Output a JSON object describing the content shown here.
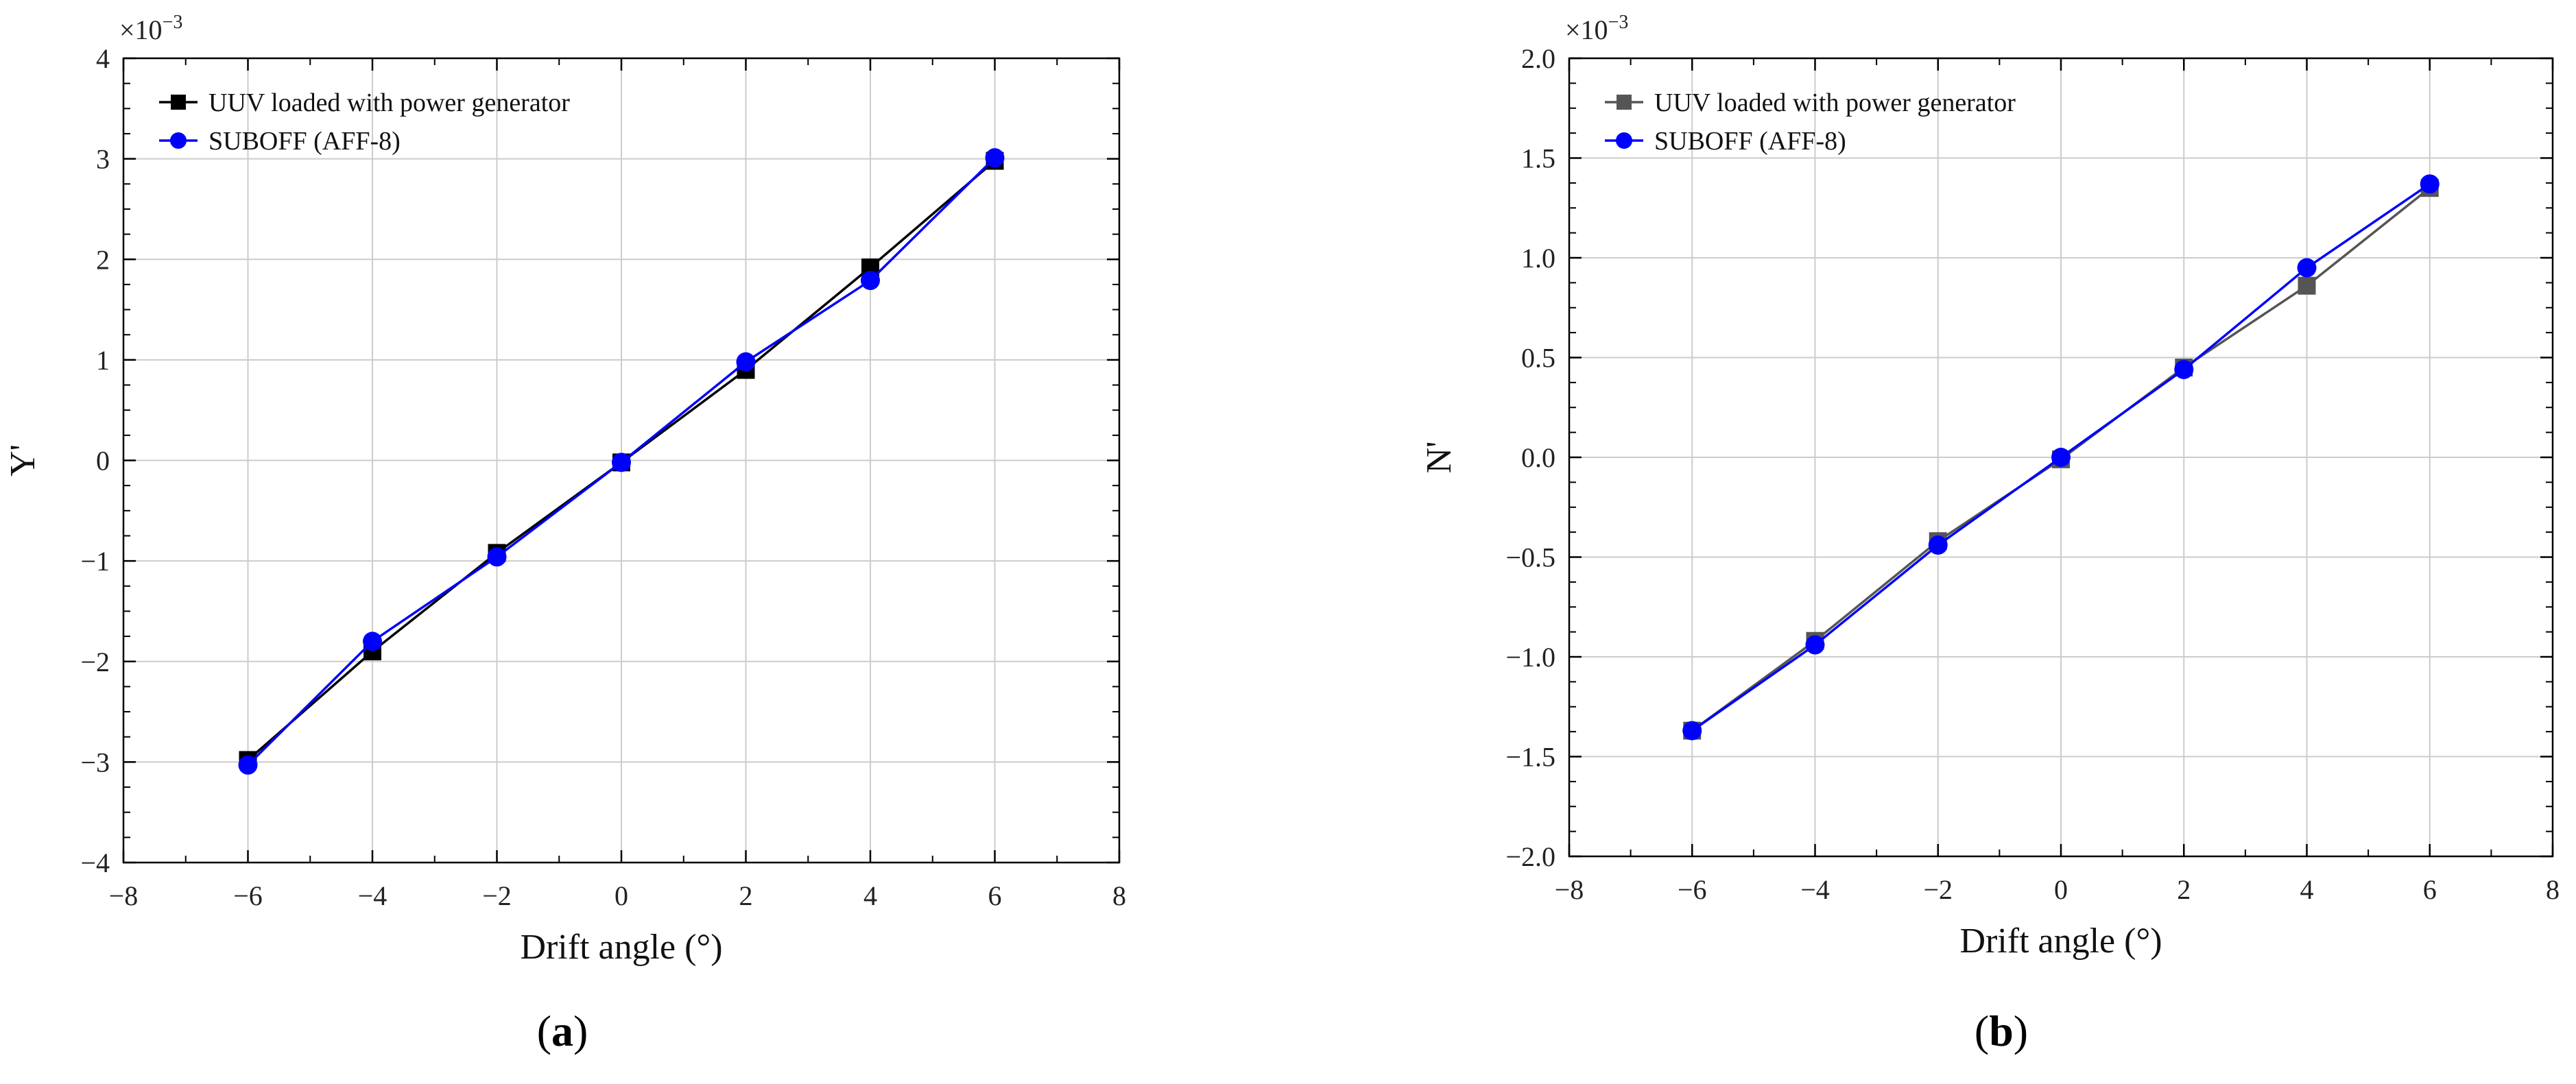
{
  "chart_data": [
    {
      "type": "line",
      "panel_label_prefix": "(",
      "panel_label": "a",
      "panel_label_suffix": ")",
      "xlabel": "Drift angle (°)",
      "ylabel": "Y'",
      "y_scale_prefix": "×10",
      "y_scale_exponent": "−3",
      "xlim": [
        -8,
        8
      ],
      "ylim": [
        -4,
        4
      ],
      "x_ticks": [
        -8,
        -6,
        -4,
        -2,
        0,
        2,
        4,
        6,
        8
      ],
      "x_tick_labels": [
        "−8",
        "−6",
        "−4",
        "−2",
        "0",
        "2",
        "4",
        "6",
        "8"
      ],
      "y_ticks": [
        -4,
        -3,
        -2,
        -1,
        0,
        1,
        2,
        3,
        4
      ],
      "y_tick_labels": [
        "−4",
        "−3",
        "−2",
        "−1",
        "0",
        "1",
        "2",
        "3",
        "4"
      ],
      "grid": true,
      "legend_position": "top-left",
      "series": [
        {
          "name": "UUV loaded with power generator",
          "color": "#000000",
          "marker": "square",
          "x": [
            -6,
            -4,
            -2,
            0,
            2,
            4,
            6
          ],
          "y": [
            -2.98,
            -1.9,
            -0.92,
            -0.02,
            0.9,
            1.92,
            2.98
          ]
        },
        {
          "name": "SUBOFF (AFF-8)",
          "color": "#0000ff",
          "marker": "circle",
          "x": [
            -6,
            -4,
            -2,
            0,
            2,
            4,
            6
          ],
          "y": [
            -3.03,
            -1.8,
            -0.96,
            -0.02,
            0.98,
            1.79,
            3.01
          ]
        }
      ]
    },
    {
      "type": "line",
      "panel_label_prefix": "(",
      "panel_label": "b",
      "panel_label_suffix": ")",
      "xlabel": "Drift angle (°)",
      "ylabel": "N'",
      "y_scale_prefix": "×10",
      "y_scale_exponent": "−3",
      "xlim": [
        -8,
        8
      ],
      "ylim": [
        -2.0,
        2.0
      ],
      "x_ticks": [
        -8,
        -6,
        -4,
        -2,
        0,
        2,
        4,
        6,
        8
      ],
      "x_tick_labels": [
        "−8",
        "−6",
        "−4",
        "−2",
        "0",
        "2",
        "4",
        "6",
        "8"
      ],
      "y_ticks": [
        -2.0,
        -1.5,
        -1.0,
        -0.5,
        0.0,
        0.5,
        1.0,
        1.5,
        2.0
      ],
      "y_tick_labels": [
        "−2.0",
        "−1.5",
        "−1.0",
        "−0.5",
        "0.0",
        "0.5",
        "1.0",
        "1.5",
        "2.0"
      ],
      "grid": true,
      "legend_position": "top-left",
      "series": [
        {
          "name": "UUV loaded with power generator",
          "color": "#555555",
          "marker": "square",
          "x": [
            -6,
            -4,
            -2,
            0,
            2,
            4,
            6
          ],
          "y": [
            -1.37,
            -0.92,
            -0.42,
            -0.01,
            0.45,
            0.86,
            1.35
          ]
        },
        {
          "name": "SUBOFF (AFF-8)",
          "color": "#0000ff",
          "marker": "circle",
          "x": [
            -6,
            -4,
            -2,
            0,
            2,
            4,
            6
          ],
          "y": [
            -1.37,
            -0.94,
            -0.44,
            0.0,
            0.44,
            0.95,
            1.37
          ]
        }
      ]
    }
  ]
}
